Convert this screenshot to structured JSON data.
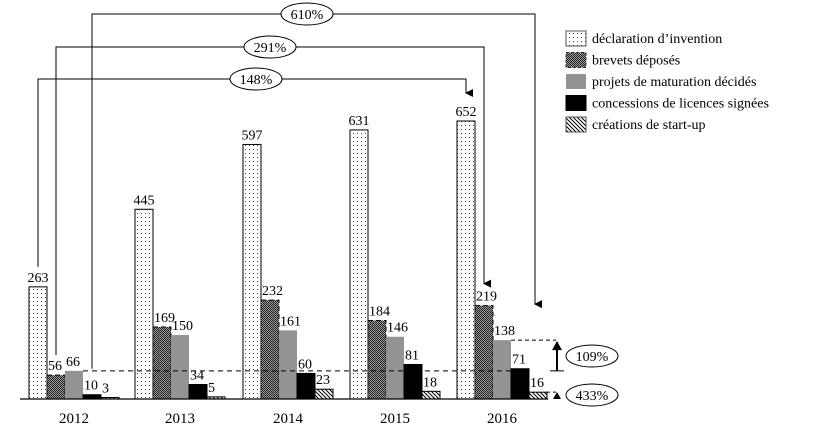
{
  "chart_data": {
    "type": "bar",
    "title": "",
    "xlabel": "",
    "ylabel": "",
    "ylim": [
      0,
      652
    ],
    "grid": false,
    "legend_position": "top-right",
    "categories": [
      "2012",
      "2013",
      "2014",
      "2015",
      "2016"
    ],
    "series": [
      {
        "name": "déclaration d’invention",
        "pattern": "dots",
        "values": [
          263,
          445,
          597,
          631,
          652
        ]
      },
      {
        "name": "brevets déposés",
        "pattern": "crosshatch-dark",
        "values": [
          56,
          169,
          232,
          184,
          219
        ]
      },
      {
        "name": "projets de maturation décidés",
        "pattern": "solid-gray",
        "values": [
          66,
          150,
          161,
          146,
          138
        ]
      },
      {
        "name": "concessions de licences signées",
        "pattern": "solid-black",
        "values": [
          10,
          34,
          60,
          81,
          71
        ]
      },
      {
        "name": "créations de start-up",
        "pattern": "diagonal-hatch",
        "values": [
          3,
          5,
          23,
          18,
          16
        ]
      }
    ],
    "annotations": [
      {
        "label": "148%",
        "from": {
          "series": 0,
          "category": "2012"
        },
        "to": {
          "series": 0,
          "category": "2016"
        },
        "type": "arrow"
      },
      {
        "label": "291%",
        "from": {
          "series": 1,
          "category": "2012"
        },
        "to": {
          "series": 1,
          "category": "2016"
        },
        "type": "arrow"
      },
      {
        "label": "610%",
        "from": {
          "series": 3,
          "category": "2012"
        },
        "to": {
          "series": 3,
          "category": "2016"
        },
        "type": "arrow"
      },
      {
        "label": "109%",
        "from_value": 66,
        "to_value": 138,
        "series": 2,
        "type": "bracket-arrow"
      },
      {
        "label": "433%",
        "from_value": 3,
        "to_value": 16,
        "series": 4,
        "type": "bracket-arrow"
      }
    ]
  },
  "colors": {
    "gray": "#939393",
    "black": "#000000",
    "dark_hatch": "#555555"
  }
}
